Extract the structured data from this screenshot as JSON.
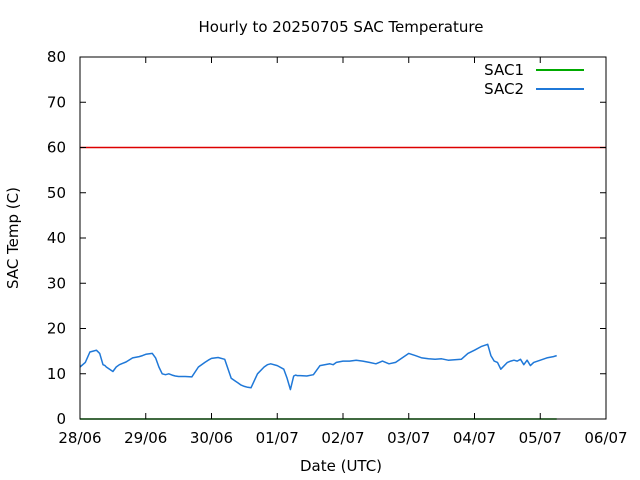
{
  "chart_data": {
    "type": "line",
    "title": "Hourly to 20250705 SAC Temperature",
    "xlabel": "Date (UTC)",
    "ylabel": "SAC Temp (C)",
    "ylim": [
      0,
      80
    ],
    "yticks": [
      0,
      10,
      20,
      30,
      40,
      50,
      60,
      70,
      80
    ],
    "xlim": [
      0,
      8
    ],
    "xtick_labels": [
      "28/06",
      "29/06",
      "30/06",
      "01/07",
      "02/07",
      "03/07",
      "04/07",
      "05/07",
      "06/07"
    ],
    "grid": false,
    "legend_position": "top-right",
    "threshold": {
      "value": 60,
      "color": "#dd0000"
    },
    "series": [
      {
        "name": "SAC1",
        "color": "#00aa00",
        "x": [
          0,
          7.25
        ],
        "y": [
          0,
          0
        ]
      },
      {
        "name": "SAC2",
        "color": "#1f78d8",
        "x": [
          0,
          0.08,
          0.15,
          0.2,
          0.25,
          0.3,
          0.35,
          0.38,
          0.4,
          0.45,
          0.5,
          0.55,
          0.6,
          0.65,
          0.7,
          0.8,
          0.9,
          0.95,
          1.0,
          1.1,
          1.15,
          1.2,
          1.25,
          1.3,
          1.35,
          1.4,
          1.45,
          1.5,
          1.6,
          1.7,
          1.8,
          1.9,
          1.95,
          2.0,
          2.1,
          2.2,
          2.3,
          2.4,
          2.45,
          2.5,
          2.55,
          2.6,
          2.7,
          2.8,
          2.85,
          2.9,
          3.0,
          3.1,
          3.15,
          3.2,
          3.25,
          3.28,
          3.3,
          3.35,
          3.45,
          3.55,
          3.65,
          3.8,
          3.85,
          3.9,
          4.0,
          4.1,
          4.2,
          4.3,
          4.4,
          4.5,
          4.6,
          4.7,
          4.8,
          4.9,
          5.0,
          5.1,
          5.2,
          5.3,
          5.4,
          5.5,
          5.6,
          5.8,
          5.9,
          6.0,
          6.1,
          6.2,
          6.25,
          6.3,
          6.35,
          6.4,
          6.5,
          6.55,
          6.6,
          6.65,
          6.7,
          6.75,
          6.8,
          6.85,
          6.9,
          7.0,
          7.1,
          7.2,
          7.25
        ],
        "y": [
          11.5,
          12.5,
          14.8,
          15.0,
          15.2,
          14.5,
          12.0,
          11.8,
          11.5,
          11.0,
          10.5,
          11.5,
          12.0,
          12.3,
          12.6,
          13.5,
          13.8,
          14.0,
          14.3,
          14.5,
          13.5,
          11.5,
          10.0,
          9.8,
          10.0,
          9.7,
          9.5,
          9.4,
          9.4,
          9.3,
          11.5,
          12.5,
          13.0,
          13.4,
          13.6,
          13.2,
          9.0,
          8.0,
          7.5,
          7.2,
          7.0,
          6.9,
          10.0,
          11.5,
          12.0,
          12.2,
          11.8,
          11.0,
          9.0,
          6.5,
          9.5,
          9.7,
          9.6,
          9.6,
          9.5,
          9.8,
          11.8,
          12.2,
          12.0,
          12.5,
          12.8,
          12.8,
          13.0,
          12.8,
          12.5,
          12.2,
          12.8,
          12.2,
          12.5,
          13.5,
          14.5,
          14.0,
          13.5,
          13.3,
          13.2,
          13.3,
          13.0,
          13.2,
          14.5,
          15.2,
          16.0,
          16.5,
          14.0,
          12.8,
          12.5,
          11.0,
          12.5,
          12.8,
          13.0,
          12.8,
          13.2,
          12.0,
          13.0,
          11.8,
          12.5,
          13.0,
          13.5,
          13.8,
          14.0
        ]
      }
    ]
  }
}
